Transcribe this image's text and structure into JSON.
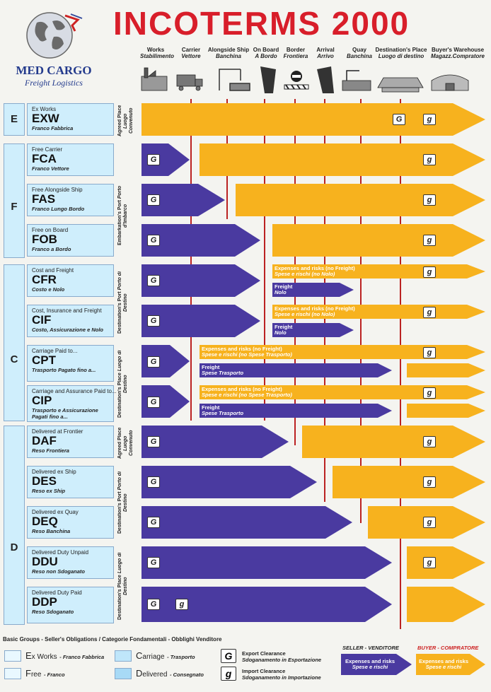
{
  "header": {
    "title": "INCOTERMS 2000",
    "logo_name": "MED CARGO",
    "logo_sub": "Freight Logistics"
  },
  "columns": [
    {
      "en": "Works",
      "it": "Stabilimento"
    },
    {
      "en": "Carrier",
      "it": "Vettore"
    },
    {
      "en": "Alongside Ship",
      "it": "Banchina"
    },
    {
      "en": "On Board",
      "it": "A Bordo"
    },
    {
      "en": "Border",
      "it": "Frontiera"
    },
    {
      "en": "Arrival",
      "it": "Arrivo"
    },
    {
      "en": "Quay",
      "it": "Banchina"
    },
    {
      "en": "Destination's Place",
      "it": "Luogo di destino"
    },
    {
      "en": "Buyer's Warehouse",
      "it": "Magazz.Compratore"
    }
  ],
  "groups": [
    {
      "letter": "E"
    },
    {
      "letter": "F"
    },
    {
      "letter": "C"
    },
    {
      "letter": "D"
    }
  ],
  "terms": [
    {
      "en": "Ex Works",
      "code": "EXW",
      "it": "Franco Fabbrica"
    },
    {
      "en": "Free Carrier",
      "code": "FCA",
      "it": "Franco Vettore"
    },
    {
      "en": "Free Alongside Ship",
      "code": "FAS",
      "it": "Franco Lungo Bordo"
    },
    {
      "en": "Free on Board",
      "code": "FOB",
      "it": "Franco a Bordo"
    },
    {
      "en": "Cost and Freight",
      "code": "CFR",
      "it": "Costo e Nolo"
    },
    {
      "en": "Cost, Insurance and Freight",
      "code": "CIF",
      "it": "Costo, Assicurazione e Nolo"
    },
    {
      "en": "Carriage Paid to...",
      "code": "CPT",
      "it": "Trasporto Pagato fino a..."
    },
    {
      "en": "Carriage and Assurance Paid to...",
      "code": "CIP",
      "it": "Trasporto e Assicurazione Pagati fino a..."
    },
    {
      "en": "Delivered at Frontier",
      "code": "DAF",
      "it": "Reso Frontiera"
    },
    {
      "en": "Delivered ex Ship",
      "code": "DES",
      "it": "Reso ex Ship"
    },
    {
      "en": "Delivered ex Quay",
      "code": "DEQ",
      "it": "Reso Banchina"
    },
    {
      "en": "Delivered Duty Unpaid",
      "code": "DDU",
      "it": "Reso non Sdoganato"
    },
    {
      "en": "Delivered Duty Paid",
      "code": "DDP",
      "it": "Reso Sdoganato"
    }
  ],
  "places": [
    {
      "en": "Agreed Place",
      "it": "Luogo Convenuto"
    },
    {
      "en": "Embarkation's Port",
      "it": "Porto d'Imbarco"
    },
    {
      "en": "Destination's Port",
      "it": "Porto di Destino"
    },
    {
      "en": "Destination's Place",
      "it": "Luogo di Destino"
    },
    {
      "en": "Agreed Place",
      "it": "Luogo Convenuto"
    },
    {
      "en": "Destination's Port",
      "it": "Porto di Destino"
    },
    {
      "en": "Destination's Place",
      "it": "Luogo di Destino"
    }
  ],
  "arrow_labels": {
    "expenses_no_freight": "Expenses and risks (no Freight)",
    "spese_no_nolo": "Spese e rischi (no Nolo)",
    "spese_no_trasporto": "Spese e rischi (no Spese Trasporto)",
    "freight": "Freight",
    "nolo": "Nolo",
    "spese_trasporto": "Spese Trasporto"
  },
  "clearance": {
    "export": "G",
    "import": "g"
  },
  "legend": {
    "title": "Basic Groups - Seller's Obligations / Categorie Fondamentali - Obblighi Venditore",
    "ex_works_initial": "E",
    "ex_works_rest": "x Works",
    "ex_works_it": "- Franco Fabbrica",
    "free_initial": "F",
    "free_rest": "ree",
    "free_it": "- Franco",
    "carriage_initial": "C",
    "carriage_rest": "arriage",
    "carriage_it": "- Trasporto",
    "delivered_initial": "D",
    "delivered_rest": "elivered",
    "delivered_it": "- Consegnato",
    "export_en": "Export Clearance",
    "export_it": "Sdoganamento in Esportazione",
    "import_en": "Import Clearance",
    "import_it": "Sdoganamento in Importazione",
    "seller_label": "SELLER - VENDITORE",
    "buyer_label": "BUYER - COMPRATORE",
    "expenses_en": "Expenses and risks",
    "expenses_it": "Spese e rischi"
  },
  "colors": {
    "seller": "#4a3aa0",
    "buyer": "#f7b21e",
    "box": "#cfeefc",
    "title": "#d81e2a",
    "line": "#b22222"
  }
}
